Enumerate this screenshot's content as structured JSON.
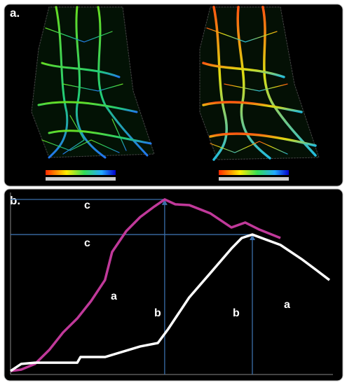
{
  "panels": [
    "a.",
    "b."
  ],
  "chart_data": {
    "type": "line",
    "annotations": [
      "c",
      "c",
      "a",
      "a",
      "b",
      "b"
    ],
    "xlim": [
      0,
      100
    ],
    "ylim": [
      0,
      100
    ],
    "series": [
      {
        "color": "#c0399a",
        "x": [
          0,
          3.3,
          7.6,
          12,
          16.3,
          20.7,
          25,
          29.3,
          31.5,
          35.9,
          40.2,
          44.6,
          47.8,
          51.1,
          55.4,
          62,
          68.5,
          72.8,
          77.2,
          83.7
        ],
        "values": [
          1.9,
          2.7,
          5.8,
          13.5,
          23.1,
          30.8,
          40.4,
          51.9,
          67.3,
          78.8,
          86.5,
          92.3,
          96.2,
          93.5,
          93.1,
          88.5,
          80.8,
          83.5,
          79.6,
          75
        ]
      },
      {
        "color": "#ffffff",
        "x": [
          0,
          3.3,
          7.6,
          20.7,
          21.7,
          29.3,
          40.2,
          45.7,
          48.9,
          55.4,
          62,
          68.5,
          71.7,
          75,
          83.7,
          90.2,
          94.6,
          98.9
        ],
        "values": [
          1.9,
          5.8,
          6.5,
          6.5,
          9.6,
          9.6,
          15.4,
          17.3,
          25,
          42.3,
          55.8,
          69.2,
          75,
          76.9,
          71.2,
          63.5,
          57.7,
          51.9
        ]
      }
    ]
  }
}
